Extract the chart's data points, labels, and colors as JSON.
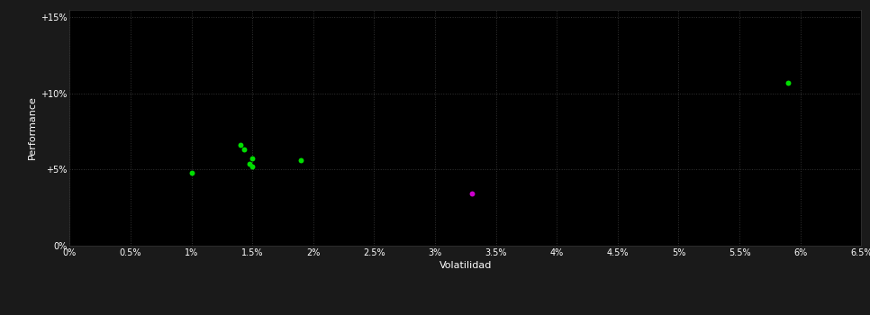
{
  "background_color": "#1a1a1a",
  "plot_bg_color": "#000000",
  "grid_color": "#333333",
  "text_color": "#ffffff",
  "xlabel": "Volatilidad",
  "ylabel": "Performance",
  "xlim": [
    0.0,
    0.065
  ],
  "ylim": [
    0.0,
    0.155
  ],
  "xticks": [
    0.0,
    0.005,
    0.01,
    0.015,
    0.02,
    0.025,
    0.03,
    0.035,
    0.04,
    0.045,
    0.05,
    0.055,
    0.06,
    0.065
  ],
  "yticks": [
    0.0,
    0.05,
    0.1,
    0.15
  ],
  "ytick_labels": [
    "0%",
    "+5%",
    "+10%",
    "+15%"
  ],
  "xtick_labels": [
    "0%",
    "0.5%",
    "1%",
    "1.5%",
    "2%",
    "2.5%",
    "3%",
    "3.5%",
    "4%",
    "4.5%",
    "5%",
    "5.5%",
    "6%",
    "6.5%"
  ],
  "green_points": [
    [
      0.01,
      0.048
    ],
    [
      0.014,
      0.066
    ],
    [
      0.0143,
      0.063
    ],
    [
      0.015,
      0.057
    ],
    [
      0.0148,
      0.054
    ],
    [
      0.015,
      0.052
    ],
    [
      0.019,
      0.056
    ],
    [
      0.059,
      0.107
    ]
  ],
  "magenta_points": [
    [
      0.033,
      0.034
    ]
  ],
  "green_color": "#00dd00",
  "magenta_color": "#cc00cc",
  "marker_size": 18,
  "font_size_ticks": 7,
  "font_size_label": 8
}
